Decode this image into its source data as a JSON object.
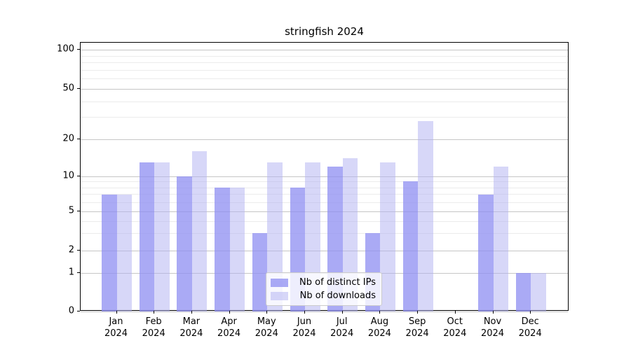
{
  "chart_data": {
    "type": "bar",
    "title": "stringfish 2024",
    "xlabel": "",
    "ylabel": "",
    "categories": [
      "Jan",
      "Feb",
      "Mar",
      "Apr",
      "May",
      "Jun",
      "Jul",
      "Aug",
      "Sep",
      "Oct",
      "Nov",
      "Dec"
    ],
    "x_year_label": "2024",
    "series": [
      {
        "name": "Nb of distinct IPs",
        "color": "rgba(142,142,242,0.75)",
        "values": [
          7,
          13,
          10,
          8,
          3,
          8,
          12,
          3,
          9,
          0,
          7,
          1
        ]
      },
      {
        "name": "Nb of downloads",
        "color": "rgba(175,175,241,0.5)",
        "values": [
          7,
          13,
          16,
          8,
          13,
          13,
          14,
          13,
          28,
          0,
          12,
          1
        ]
      }
    ],
    "y_ticks": [
      0,
      1,
      2,
      5,
      10,
      20,
      50,
      100
    ],
    "y_minor_ticks": [
      3,
      4,
      6,
      7,
      8,
      9,
      30,
      40,
      60,
      70,
      80,
      90
    ],
    "y_scale": "symlog-like",
    "ylim": [
      0,
      115
    ],
    "grid": "both",
    "legend_position": "lower-center",
    "colors": {
      "major_grid": "#c6c6c6",
      "minor_grid": "#ebebeb",
      "spine": "#000000"
    }
  }
}
